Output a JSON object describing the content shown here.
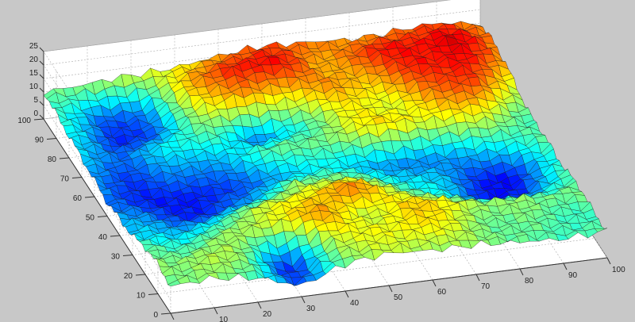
{
  "chart_data": {
    "type": "surface",
    "title": "",
    "xlabel": "",
    "ylabel": "",
    "zlabel": "",
    "colormap": "jet",
    "grid": true,
    "background": "#c8c8c8",
    "xlim": [
      0,
      100
    ],
    "ylim": [
      0,
      100
    ],
    "zlim": [
      0,
      25
    ],
    "xticks": [
      "0",
      "10",
      "20",
      "30",
      "40",
      "50",
      "60",
      "70",
      "80",
      "90",
      "100"
    ],
    "yticks": [
      "0",
      "10",
      "20",
      "30",
      "40",
      "50",
      "60",
      "70",
      "80",
      "90",
      "100"
    ],
    "zticks": [
      "0",
      "5",
      "10",
      "15",
      "20",
      "25"
    ],
    "x": [
      0,
      10,
      20,
      30,
      40,
      50,
      60,
      70,
      80,
      90,
      100
    ],
    "y": [
      100,
      90,
      80,
      70,
      60,
      50,
      40,
      30,
      20,
      10,
      0
    ],
    "z_approx": [
      [
        10,
        11,
        12,
        13,
        15,
        17,
        16,
        15,
        16,
        17,
        15
      ],
      [
        9,
        4,
        6,
        14,
        19,
        18,
        15,
        17,
        18,
        20,
        15
      ],
      [
        8,
        3,
        5,
        12,
        16,
        13,
        16,
        14,
        18,
        19,
        14
      ],
      [
        7,
        5,
        8,
        10,
        4,
        9,
        13,
        12,
        16,
        17,
        12
      ],
      [
        6,
        4,
        5,
        7,
        9,
        11,
        12,
        14,
        13,
        12,
        10
      ],
      [
        5,
        3,
        3,
        4,
        6,
        8,
        6,
        5,
        6,
        8,
        10
      ],
      [
        6,
        4,
        4,
        5,
        12,
        10,
        9,
        7,
        4,
        3,
        8
      ],
      [
        7,
        6,
        9,
        12,
        14,
        16,
        12,
        8,
        3,
        4,
        9
      ],
      [
        10,
        9,
        11,
        13,
        15,
        12,
        14,
        13,
        11,
        10,
        11
      ],
      [
        11,
        12,
        10,
        3,
        11,
        14,
        13,
        12,
        10,
        9,
        10
      ],
      [
        10,
        11,
        9,
        4,
        10,
        12,
        11,
        11,
        10,
        9,
        10
      ]
    ]
  }
}
